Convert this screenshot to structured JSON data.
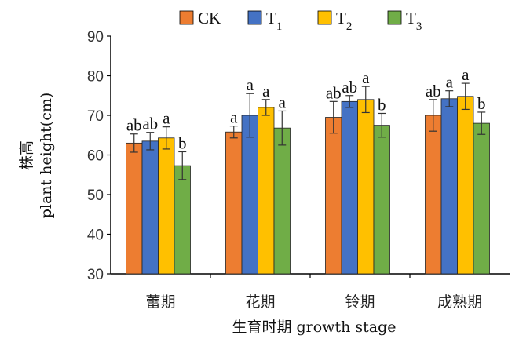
{
  "chart_data": {
    "type": "bar",
    "title": "",
    "xlabel": "生育时期 growth stage",
    "ylabel_cn": "株高",
    "ylabel_en": "plant height(cm)",
    "ylim": [
      30,
      90
    ],
    "yticks": [
      30,
      40,
      50,
      60,
      70,
      80,
      90
    ],
    "legend_position": "top",
    "grid": false,
    "categories": [
      "蕾期",
      "花期",
      "铃期",
      "成熟期"
    ],
    "series": [
      {
        "name": "CK",
        "sub": "",
        "color": "#ED7D31",
        "values": [
          63.0,
          65.8,
          69.5,
          70.0
        ],
        "errors": [
          2.3,
          1.5,
          4.0,
          4.0
        ],
        "labels": [
          "ab",
          "a",
          "ab",
          "ab"
        ]
      },
      {
        "name": "T",
        "sub": "1",
        "color": "#4472C4",
        "values": [
          63.5,
          70.0,
          73.5,
          74.2
        ],
        "errors": [
          2.2,
          5.5,
          1.5,
          2.0
        ],
        "labels": [
          "ab",
          "a",
          "ab",
          "a"
        ]
      },
      {
        "name": "T",
        "sub": "2",
        "color": "#FFC000",
        "values": [
          64.3,
          72.0,
          74.0,
          74.8
        ],
        "errors": [
          2.8,
          2.0,
          3.3,
          3.3
        ],
        "labels": [
          "a",
          "a",
          "a",
          "a"
        ]
      },
      {
        "name": "T",
        "sub": "3",
        "color": "#70AD47",
        "values": [
          57.3,
          66.8,
          67.5,
          68.0
        ],
        "errors": [
          3.5,
          4.3,
          3.0,
          2.8
        ],
        "labels": [
          "b",
          "a",
          "b",
          "b"
        ]
      }
    ]
  }
}
